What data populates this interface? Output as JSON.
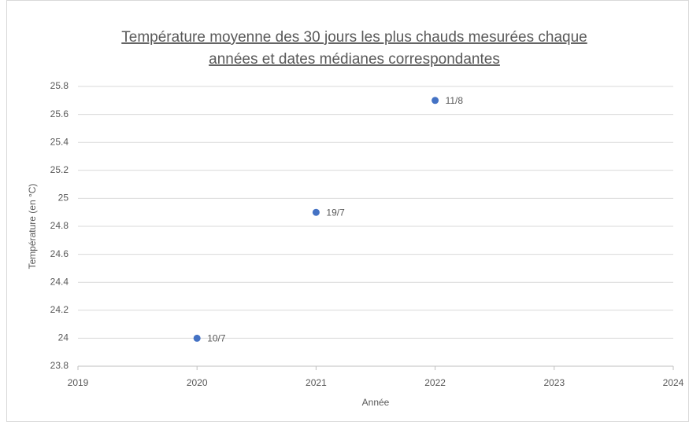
{
  "chart_data": {
    "type": "scatter",
    "title": [
      "Température moyenne des 30 jours les plus chauds mesurées chaque",
      "années et dates médianes correspondantes"
    ],
    "x_label": "Année",
    "y_label": "Température (en °C)",
    "x": [
      2020,
      2021,
      2022
    ],
    "values": [
      24,
      24.9,
      25.7
    ],
    "point_labels": [
      "10/7",
      "19/7",
      "11/8"
    ],
    "color": "#4472c4",
    "xlim": [
      2019,
      2024
    ],
    "xticks": [
      2019,
      2020,
      2021,
      2022,
      2023,
      2024
    ],
    "ylim": [
      23.8,
      25.8
    ],
    "yticks": [
      23.8,
      24,
      24.2,
      24.4,
      24.6,
      24.8,
      25,
      25.2,
      25.4,
      25.6,
      25.8
    ],
    "grid": true
  }
}
